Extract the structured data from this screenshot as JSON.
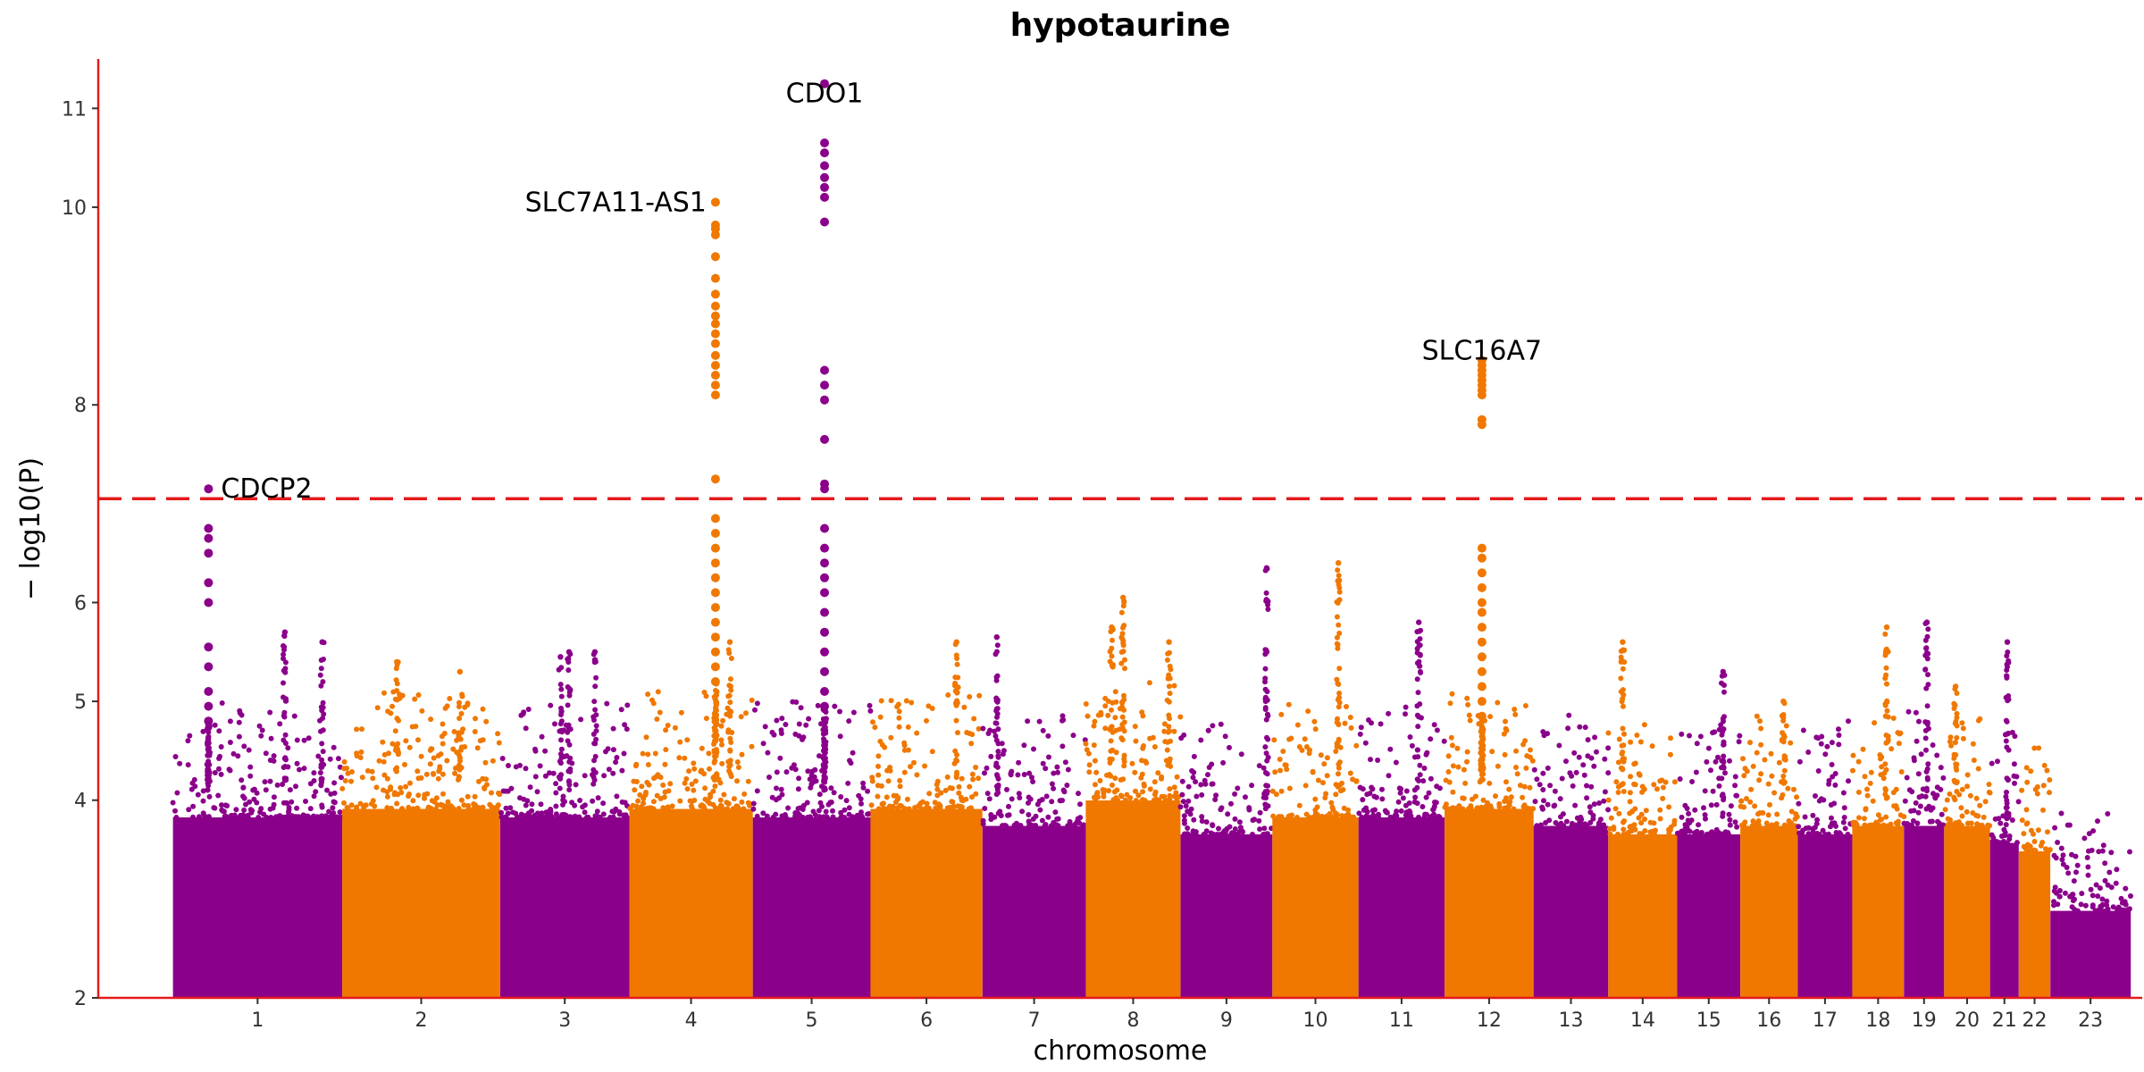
{
  "chart_data": {
    "type": "scatter",
    "title": "hypotaurine",
    "xlabel": "chromosome",
    "ylabel": "− log10(P)",
    "ylim": [
      2,
      11.5
    ],
    "yticks": [
      2,
      4,
      5,
      6,
      8,
      10,
      11
    ],
    "threshold": 7.05,
    "colors": {
      "odd": "#8B008B",
      "even": "#F07800",
      "threshold": "#E41A1C"
    },
    "chromosomes": [
      {
        "label": "1",
        "start": 0.0,
        "end": 2.95,
        "base": 4.1
      },
      {
        "label": "2",
        "start": 2.95,
        "end": 5.7,
        "base": 4.2
      },
      {
        "label": "3",
        "start": 5.7,
        "end": 7.95,
        "base": 4.1
      },
      {
        "label": "4",
        "start": 7.95,
        "end": 10.1,
        "base": 4.2
      },
      {
        "label": "5",
        "start": 10.1,
        "end": 12.15,
        "base": 4.1
      },
      {
        "label": "6",
        "start": 12.15,
        "end": 14.1,
        "base": 4.2
      },
      {
        "label": "7",
        "start": 14.1,
        "end": 15.9,
        "base": 4.0
      },
      {
        "label": "8",
        "start": 15.9,
        "end": 17.55,
        "base": 4.3
      },
      {
        "label": "9",
        "start": 17.55,
        "end": 19.15,
        "base": 3.9
      },
      {
        "label": "10",
        "start": 19.15,
        "end": 20.65,
        "base": 4.1
      },
      {
        "label": "11",
        "start": 20.65,
        "end": 22.15,
        "base": 4.1
      },
      {
        "label": "12",
        "start": 22.15,
        "end": 23.7,
        "base": 4.2
      },
      {
        "label": "13",
        "start": 23.7,
        "end": 25.0,
        "base": 4.0
      },
      {
        "label": "14",
        "start": 25.0,
        "end": 26.2,
        "base": 3.9
      },
      {
        "label": "15",
        "start": 26.2,
        "end": 27.3,
        "base": 3.9
      },
      {
        "label": "16",
        "start": 27.3,
        "end": 28.3,
        "base": 4.0
      },
      {
        "label": "17",
        "start": 28.3,
        "end": 29.25,
        "base": 3.9
      },
      {
        "label": "18",
        "start": 29.25,
        "end": 30.15,
        "base": 4.0
      },
      {
        "label": "19",
        "start": 30.15,
        "end": 30.85,
        "base": 4.0
      },
      {
        "label": "20",
        "start": 30.85,
        "end": 31.65,
        "base": 4.0
      },
      {
        "label": "21",
        "start": 31.65,
        "end": 32.15,
        "base": 3.8
      },
      {
        "label": "22",
        "start": 32.15,
        "end": 32.7,
        "base": 3.7
      },
      {
        "label": "23",
        "start": 32.7,
        "end": 34.1,
        "base": 3.0
      }
    ],
    "xlim": [
      -1.3,
      34.3
    ],
    "peaks": [
      {
        "chr": "1",
        "x": 0.62,
        "ys": [
          7.15,
          6.75,
          6.65,
          6.5,
          6.2,
          6.0,
          5.55,
          5.35,
          5.1,
          4.95,
          4.8
        ]
      },
      {
        "chr": "4",
        "x": 9.45,
        "ys": [
          10.05,
          9.82,
          9.78,
          9.72,
          9.5,
          9.28,
          9.12,
          9.0,
          8.9,
          8.82,
          8.72,
          8.62,
          8.5,
          8.4,
          8.3,
          8.2,
          8.1,
          7.25,
          6.85,
          6.7,
          6.55,
          6.4,
          6.25,
          6.1,
          5.95,
          5.8,
          5.65,
          5.5,
          5.35,
          5.2
        ]
      },
      {
        "chr": "5",
        "x": 11.35,
        "ys": [
          11.25,
          10.65,
          10.55,
          10.42,
          10.3,
          10.2,
          10.1,
          9.85,
          8.35,
          8.2,
          8.05,
          7.65,
          7.2,
          7.15,
          6.75,
          6.55,
          6.4,
          6.25,
          6.1,
          5.9,
          5.7,
          5.5,
          5.3,
          5.1,
          4.95
        ]
      },
      {
        "chr": "12",
        "x": 22.8,
        "ys": [
          8.45,
          8.4,
          8.35,
          8.3,
          8.25,
          8.2,
          8.15,
          8.1,
          7.85,
          7.8,
          6.55,
          6.45,
          6.3,
          6.15,
          6.0,
          5.9,
          5.75,
          5.6,
          5.45,
          5.3,
          5.15,
          5.0,
          4.85
        ]
      }
    ],
    "minor_towers": [
      {
        "x": 1.95,
        "top": 5.7
      },
      {
        "x": 2.6,
        "top": 5.6
      },
      {
        "x": 3.9,
        "top": 5.4
      },
      {
        "x": 5.0,
        "top": 5.3
      },
      {
        "x": 6.75,
        "top": 5.45
      },
      {
        "x": 6.9,
        "top": 5.5
      },
      {
        "x": 7.35,
        "top": 5.5
      },
      {
        "x": 9.7,
        "top": 5.6
      },
      {
        "x": 13.65,
        "top": 5.6
      },
      {
        "x": 14.35,
        "top": 5.65
      },
      {
        "x": 16.55,
        "top": 6.05
      },
      {
        "x": 16.35,
        "top": 5.75
      },
      {
        "x": 17.35,
        "top": 5.6
      },
      {
        "x": 19.05,
        "top": 6.35
      },
      {
        "x": 20.3,
        "top": 6.4
      },
      {
        "x": 21.7,
        "top": 5.8
      },
      {
        "x": 25.25,
        "top": 5.6
      },
      {
        "x": 27.0,
        "top": 5.3
      },
      {
        "x": 28.05,
        "top": 5.0
      },
      {
        "x": 29.85,
        "top": 5.75
      },
      {
        "x": 30.55,
        "top": 5.8
      },
      {
        "x": 31.05,
        "top": 5.15
      },
      {
        "x": 31.95,
        "top": 5.6
      }
    ],
    "annotations": [
      {
        "text": "CDCP2",
        "x": 0.62,
        "y": 7.15,
        "anchor": "start",
        "dx": 14
      },
      {
        "text": "SLC7A11-AS1",
        "x": 9.45,
        "y": 10.05,
        "anchor": "end",
        "dx": -10
      },
      {
        "text": "CDO1",
        "x": 11.35,
        "y": 11.15,
        "anchor": "middle",
        "dx": 0
      },
      {
        "text": "SLC16A7",
        "x": 22.8,
        "y": 8.55,
        "anchor": "middle",
        "dx": 0
      }
    ]
  }
}
